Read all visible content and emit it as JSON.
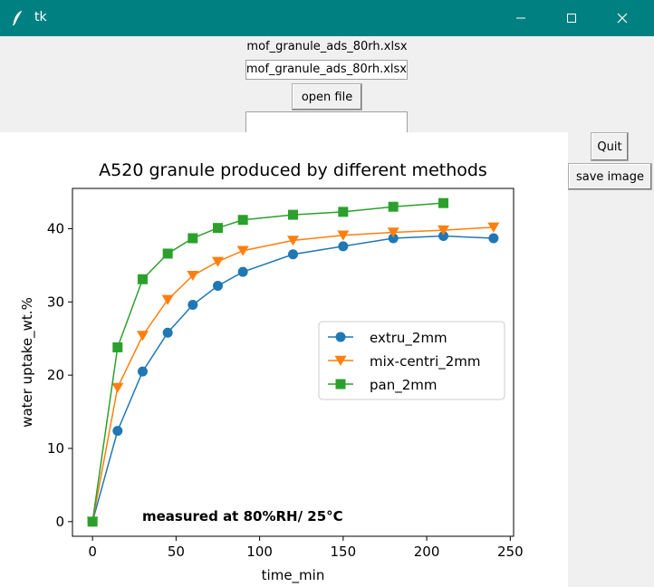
{
  "window": {
    "title": "tk"
  },
  "file": {
    "label": "mof_granule_ads_80rh.xlsx",
    "entry_value": "mof_granule_ads_80rh.xlsx"
  },
  "buttons": {
    "open_file": "open file",
    "quit": "Quit",
    "save_image": "save image"
  },
  "chart_data": {
    "type": "line",
    "title": "A520 granule produced by different methods",
    "xlabel": "time_min",
    "ylabel": "water uptake_wt.%",
    "xlim": [
      -12,
      252
    ],
    "ylim": [
      -2,
      45.5
    ],
    "xticks": [
      0,
      50,
      100,
      150,
      200,
      250
    ],
    "yticks": [
      0,
      10,
      20,
      30,
      40
    ],
    "annotation": "measured at 80%RH/ 25°C",
    "legend_position": "center-right",
    "grid": false,
    "series": [
      {
        "name": "extru_2mm",
        "marker": "circle",
        "color": "#1f77b4",
        "x": [
          0,
          15,
          30,
          45,
          60,
          75,
          90,
          120,
          150,
          180,
          210,
          240
        ],
        "y": [
          0,
          12.4,
          20.5,
          25.8,
          29.6,
          32.2,
          34.1,
          36.5,
          37.6,
          38.7,
          39.0,
          38.7
        ]
      },
      {
        "name": "mix-centri_2mm",
        "marker": "triangle-down",
        "color": "#ff7f0e",
        "x": [
          0,
          15,
          30,
          45,
          60,
          75,
          90,
          120,
          150,
          180,
          210,
          240
        ],
        "y": [
          0,
          18.3,
          25.4,
          30.3,
          33.6,
          35.5,
          37.0,
          38.4,
          39.1,
          39.5,
          39.8,
          40.2
        ]
      },
      {
        "name": "pan_2mm",
        "marker": "square",
        "color": "#2ca02c",
        "x": [
          0,
          15,
          30,
          45,
          60,
          75,
          90,
          120,
          150,
          180,
          210
        ],
        "y": [
          0,
          23.8,
          33.1,
          36.6,
          38.7,
          40.1,
          41.2,
          41.9,
          42.3,
          43.0,
          43.5
        ]
      }
    ]
  }
}
